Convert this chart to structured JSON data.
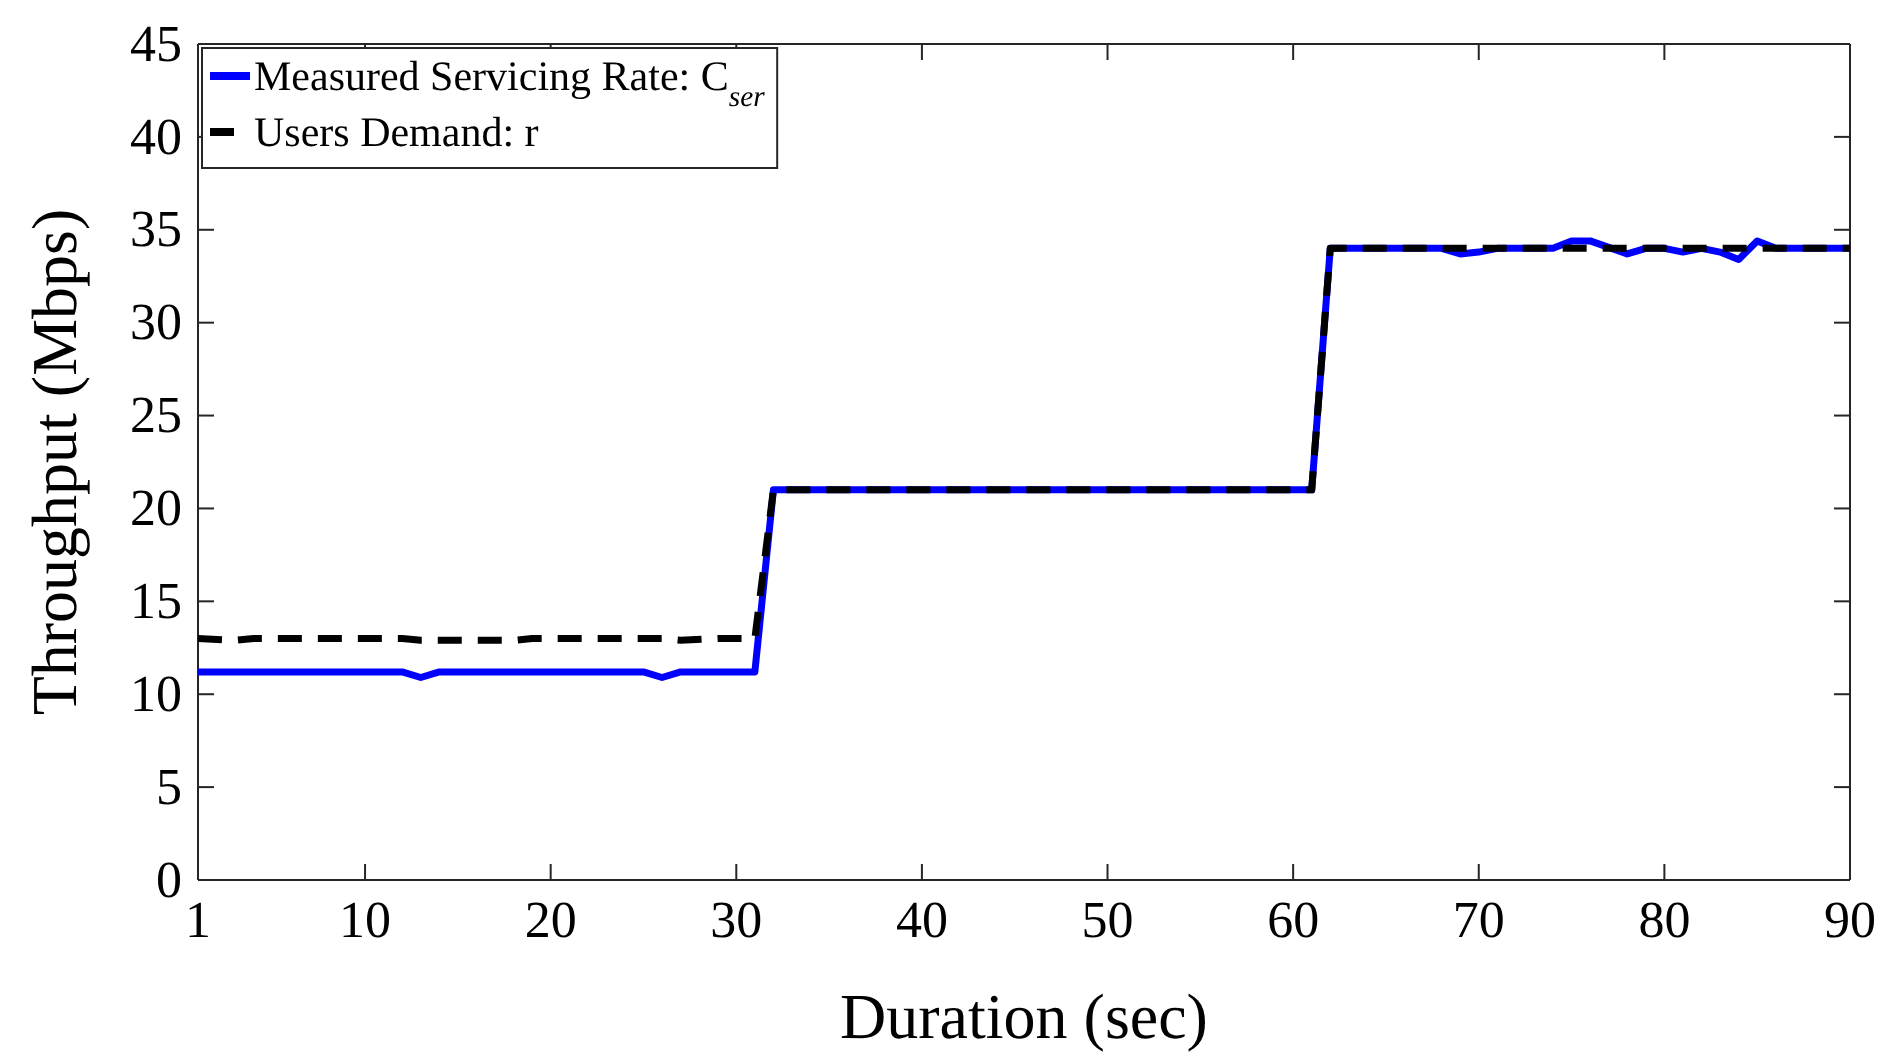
{
  "chart_data": {
    "type": "line",
    "xlabel": "Duration (sec)",
    "ylabel": "Throughput (Mbps)",
    "xlim": [
      1,
      90
    ],
    "xticks": [
      1,
      10,
      20,
      30,
      40,
      50,
      60,
      70,
      80,
      90
    ],
    "ylim": [
      0,
      45
    ],
    "yticks": [
      0,
      5,
      10,
      15,
      20,
      25,
      30,
      35,
      40,
      45
    ],
    "grid": false,
    "legend": "top left",
    "marker": "none",
    "series": [
      {
        "name": "Measured Servicing Rate: C$_{ser}$",
        "color": "#0000ff",
        "line_style": "solid",
        "x": [
          1,
          12,
          13,
          14,
          25,
          26,
          27,
          31,
          32,
          61,
          62,
          68,
          69,
          70,
          71,
          74,
          75,
          76,
          78,
          79,
          80,
          81,
          82,
          83,
          84,
          85,
          86,
          90
        ],
        "values": [
          11.2,
          11.2,
          10.9,
          11.2,
          11.2,
          10.9,
          11.2,
          11.2,
          21,
          21,
          34,
          34,
          33.7,
          33.8,
          34,
          34,
          34.4,
          34.4,
          33.7,
          34,
          34,
          33.8,
          34,
          33.8,
          33.4,
          34.4,
          34,
          34
        ]
      },
      {
        "name": "Users Demand: r",
        "color": "#000000",
        "line_style": "dashed",
        "x": [
          1,
          3,
          4,
          12,
          13,
          18,
          19,
          26,
          27,
          29,
          30,
          31,
          32,
          61,
          62,
          90
        ],
        "values": [
          13,
          12.9,
          13,
          13,
          12.9,
          12.9,
          13,
          13,
          12.9,
          13,
          13,
          13,
          21,
          21,
          34,
          34
        ]
      }
    ]
  }
}
